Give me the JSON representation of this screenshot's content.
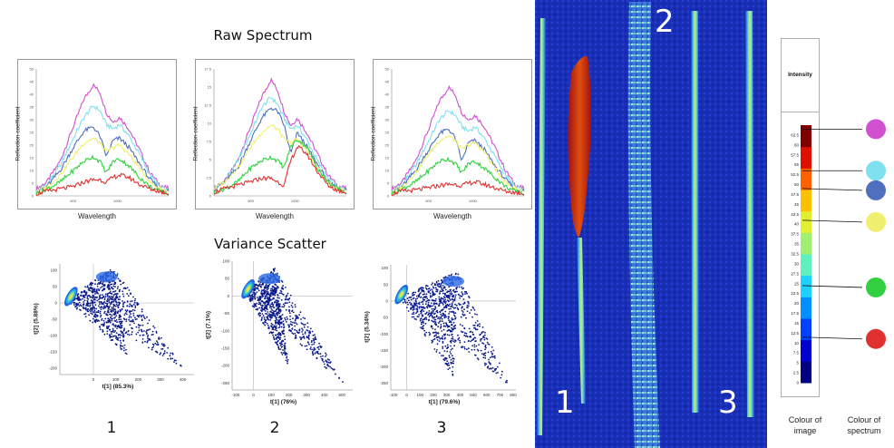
{
  "raw_title": "Raw Spectrum",
  "scatter_title": "Variance Scatter",
  "sample_numbers": [
    "1",
    "2",
    "3"
  ],
  "image_numbers": [
    "1",
    "2",
    "3"
  ],
  "legend": {
    "title": "Intensity",
    "ticks": [
      "0",
      "2.5",
      "5",
      "7.5",
      "10",
      "12.5",
      "15",
      "17.5",
      "20",
      "22.5",
      "25",
      "27.5",
      "30",
      "32.5",
      "35",
      "37.5",
      "40",
      "42.5",
      "45",
      "47.5",
      "50",
      "52.5",
      "55",
      "57.5",
      "60",
      "62.5"
    ],
    "colour_of_image_label": "Colour of image",
    "colour_of_spectrum_label": "Colour of spectrum",
    "markers": [
      {
        "value": 64,
        "color": "#d050d0"
      },
      {
        "value": 53.5,
        "color": "#7fe0f0"
      },
      {
        "value": 49,
        "color": "#4f6fbf"
      },
      {
        "value": 41,
        "color": "#f0f070"
      },
      {
        "value": 24.5,
        "color": "#30d040"
      },
      {
        "value": 11.5,
        "color": "#e03030"
      }
    ]
  },
  "chart_data": [
    {
      "type": "line",
      "title": "",
      "xlabel": "Wavelength",
      "ylabel": "Reflection coefficient",
      "xticks": [
        "500",
        "1000"
      ],
      "yticks": [
        "0",
        "5",
        "10",
        "15",
        "20",
        "25",
        "30",
        "35",
        "40",
        "45",
        "50"
      ],
      "ylim": [
        0,
        55
      ],
      "series": [
        {
          "color": "#d050d0",
          "x": [
            0,
            0.08,
            0.18,
            0.28,
            0.36,
            0.43,
            0.48,
            0.53,
            0.58,
            0.63,
            0.7,
            0.78,
            0.86,
            0.93,
            1
          ],
          "y": [
            3,
            6,
            15,
            30,
            42,
            48,
            45,
            36,
            32,
            34,
            29,
            20,
            10,
            5,
            3
          ]
        },
        {
          "color": "#7fe0f0",
          "x": [
            0,
            0.08,
            0.18,
            0.28,
            0.36,
            0.43,
            0.48,
            0.53,
            0.58,
            0.63,
            0.7,
            0.78,
            0.86,
            0.93,
            1
          ],
          "y": [
            2,
            5,
            13,
            25,
            34,
            39,
            37,
            31,
            29,
            31,
            26,
            18,
            9,
            4,
            2
          ]
        },
        {
          "color": "#4f6fbf",
          "x": [
            0,
            0.08,
            0.18,
            0.28,
            0.36,
            0.43,
            0.48,
            0.53,
            0.58,
            0.63,
            0.7,
            0.78,
            0.86,
            0.93,
            1
          ],
          "y": [
            2,
            4,
            11,
            21,
            28,
            30,
            26,
            17,
            24,
            25,
            21,
            14,
            7,
            3,
            2
          ]
        },
        {
          "color": "#f0f070",
          "x": [
            0,
            0.08,
            0.18,
            0.28,
            0.36,
            0.43,
            0.48,
            0.53,
            0.58,
            0.63,
            0.7,
            0.78,
            0.86,
            0.93,
            1
          ],
          "y": [
            2,
            4,
            9,
            17,
            23,
            25,
            23,
            19,
            21,
            22,
            18,
            12,
            6,
            3,
            2
          ]
        },
        {
          "color": "#30d040",
          "x": [
            0,
            0.08,
            0.18,
            0.28,
            0.36,
            0.43,
            0.48,
            0.53,
            0.58,
            0.63,
            0.7,
            0.78,
            0.86,
            0.93,
            1
          ],
          "y": [
            1,
            3,
            6,
            11,
            15,
            17,
            15,
            10,
            15,
            16,
            13,
            8,
            4,
            2,
            1
          ]
        },
        {
          "color": "#e03030",
          "x": [
            0,
            0.08,
            0.18,
            0.28,
            0.36,
            0.43,
            0.48,
            0.53,
            0.58,
            0.63,
            0.7,
            0.78,
            0.86,
            0.93,
            1
          ],
          "y": [
            1,
            2,
            3,
            4,
            6,
            7,
            7,
            6,
            8,
            9,
            8,
            5,
            3,
            2,
            1
          ]
        }
      ]
    },
    {
      "type": "line",
      "title": "",
      "xlabel": "Wavelength",
      "ylabel": "Reflection coefficient",
      "xticks": [
        "500",
        "1000"
      ],
      "yticks": [
        "0",
        "2.5",
        "5",
        "7.5",
        "10",
        "12.5",
        "15",
        "17.5"
      ],
      "ylim": [
        0,
        18
      ],
      "series": [
        {
          "color": "#d050d0",
          "x": [
            0,
            0.08,
            0.18,
            0.28,
            0.36,
            0.43,
            0.48,
            0.53,
            0.58,
            0.63,
            0.7,
            0.78,
            0.86,
            0.93,
            1
          ],
          "y": [
            1,
            2,
            5,
            10,
            14,
            16.5,
            15,
            12,
            10,
            11,
            9,
            6,
            3,
            1.5,
            1
          ]
        },
        {
          "color": "#7fe0f0",
          "x": [
            0,
            0.08,
            0.18,
            0.28,
            0.36,
            0.43,
            0.48,
            0.53,
            0.58,
            0.63,
            0.7,
            0.78,
            0.86,
            0.93,
            1
          ],
          "y": [
            1,
            2,
            5,
            9,
            12.5,
            14,
            13,
            11,
            9.5,
            10,
            8,
            5,
            2.5,
            1.2,
            0.8
          ]
        },
        {
          "color": "#4f6fbf",
          "x": [
            0,
            0.08,
            0.18,
            0.28,
            0.36,
            0.43,
            0.48,
            0.53,
            0.58,
            0.63,
            0.7,
            0.78,
            0.86,
            0.93,
            1
          ],
          "y": [
            1,
            2,
            4,
            8,
            11,
            12.5,
            12,
            10,
            6,
            9,
            7,
            4.5,
            2,
            1,
            0.8
          ]
        },
        {
          "color": "#f0f070",
          "x": [
            0,
            0.08,
            0.18,
            0.28,
            0.36,
            0.43,
            0.48,
            0.53,
            0.58,
            0.63,
            0.7,
            0.78,
            0.86,
            0.93,
            1
          ],
          "y": [
            1,
            2,
            4,
            7,
            9,
            10,
            9.5,
            8,
            7.5,
            8,
            6.5,
            4,
            2,
            1,
            0.8
          ]
        },
        {
          "color": "#30d040",
          "x": [
            0,
            0.08,
            0.18,
            0.28,
            0.36,
            0.43,
            0.48,
            0.53,
            0.58,
            0.63,
            0.7,
            0.78,
            0.86,
            0.93,
            1
          ],
          "y": [
            0.5,
            1,
            2,
            4,
            5,
            5.5,
            5,
            4,
            7,
            8,
            7,
            4,
            2,
            1,
            0.5
          ]
        },
        {
          "color": "#e03030",
          "x": [
            0,
            0.08,
            0.18,
            0.28,
            0.36,
            0.43,
            0.48,
            0.53,
            0.58,
            0.63,
            0.7,
            0.78,
            0.86,
            0.93,
            1
          ],
          "y": [
            0.5,
            1,
            1.5,
            2,
            2.5,
            2.5,
            2,
            1.5,
            5,
            7,
            6,
            3.5,
            1.5,
            0.8,
            0.5
          ]
        }
      ]
    },
    {
      "type": "line",
      "title": "",
      "xlabel": "Wavelength",
      "ylabel": "Reflection coefficient",
      "xticks": [
        "500",
        "1000"
      ],
      "yticks": [
        "0",
        "5",
        "10",
        "15",
        "20",
        "25",
        "30",
        "35",
        "40",
        "45",
        "50"
      ],
      "ylim": [
        0,
        55
      ],
      "series": [
        {
          "color": "#d050d0",
          "x": [
            0,
            0.08,
            0.18,
            0.28,
            0.36,
            0.43,
            0.48,
            0.53,
            0.58,
            0.63,
            0.7,
            0.78,
            0.86,
            0.93,
            1
          ],
          "y": [
            3,
            6,
            15,
            29,
            41,
            47,
            44,
            36,
            33,
            35,
            30,
            21,
            11,
            5,
            3
          ]
        },
        {
          "color": "#7fe0f0",
          "x": [
            0,
            0.08,
            0.18,
            0.28,
            0.36,
            0.43,
            0.48,
            0.53,
            0.58,
            0.63,
            0.7,
            0.78,
            0.86,
            0.93,
            1
          ],
          "y": [
            2,
            5,
            13,
            24,
            33,
            37,
            35,
            30,
            28,
            30,
            25,
            17,
            9,
            4,
            2
          ]
        },
        {
          "color": "#4f6fbf",
          "x": [
            0,
            0.08,
            0.18,
            0.28,
            0.36,
            0.43,
            0.48,
            0.53,
            0.58,
            0.63,
            0.7,
            0.78,
            0.86,
            0.93,
            1
          ],
          "y": [
            2,
            4,
            11,
            20,
            27,
            29,
            25,
            15,
            23,
            24,
            20,
            13,
            7,
            3,
            2
          ]
        },
        {
          "color": "#f0f070",
          "x": [
            0,
            0.08,
            0.18,
            0.28,
            0.36,
            0.43,
            0.48,
            0.53,
            0.58,
            0.63,
            0.7,
            0.78,
            0.86,
            0.93,
            1
          ],
          "y": [
            2,
            4,
            10,
            18,
            24,
            26,
            24,
            20,
            22,
            23,
            19,
            12,
            6,
            3,
            2
          ]
        },
        {
          "color": "#30d040",
          "x": [
            0,
            0.08,
            0.18,
            0.28,
            0.36,
            0.43,
            0.48,
            0.53,
            0.58,
            0.63,
            0.7,
            0.78,
            0.86,
            0.93,
            1
          ],
          "y": [
            1,
            3,
            6,
            11,
            15,
            16,
            14,
            10,
            14,
            15,
            12,
            8,
            4,
            2,
            1
          ]
        },
        {
          "color": "#e03030",
          "x": [
            0,
            0.08,
            0.18,
            0.28,
            0.36,
            0.43,
            0.48,
            0.53,
            0.58,
            0.63,
            0.7,
            0.78,
            0.86,
            0.93,
            1
          ],
          "y": [
            1,
            2,
            2.5,
            3.5,
            4.5,
            5,
            5,
            4.5,
            5.5,
            6,
            5,
            3.5,
            2,
            1.5,
            1
          ]
        }
      ]
    },
    {
      "type": "scatter",
      "title": "",
      "xlabel": "t[1] (85.3%)",
      "ylabel": "t[2] (5.88%)",
      "xticks": [
        "0",
        "100",
        "200",
        "300",
        "400"
      ],
      "xlim": [
        -150,
        450
      ],
      "yticks": [
        "100",
        "50",
        "0",
        "-50",
        "-100",
        "-150",
        "-200"
      ],
      "ylim": [
        -220,
        120
      ],
      "cloud": {
        "tip": [
          90,
          110
        ],
        "left": [
          -120,
          10
        ],
        "right": [
          400,
          -200
        ],
        "low": [
          150,
          -160
        ]
      }
    },
    {
      "type": "scatter",
      "title": "",
      "xlabel": "t[1] (76%)",
      "ylabel": "t[2] (7.1%)",
      "xticks": [
        "-100",
        "0",
        "100",
        "200",
        "300",
        "400",
        "500"
      ],
      "xlim": [
        -120,
        560
      ],
      "yticks": [
        "100",
        "50",
        "0",
        "-50",
        "-100",
        "-150",
        "-200",
        "-250"
      ],
      "ylim": [
        -270,
        100
      ],
      "cloud": {
        "tip": [
          120,
          80
        ],
        "left": [
          -50,
          10
        ],
        "right": [
          520,
          -260
        ],
        "low": [
          200,
          -200
        ]
      }
    },
    {
      "type": "scatter",
      "title": "",
      "xlabel": "t[1] (79.6%)",
      "ylabel": "t[2] (5.34%)",
      "xticks": [
        "-100",
        "0",
        "100",
        "200",
        "300",
        "400",
        "500",
        "600",
        "700",
        "800"
      ],
      "xlim": [
        -120,
        820
      ],
      "yticks": [
        "100",
        "50",
        "0",
        "-50",
        "-100",
        "-150",
        "-200",
        "-250"
      ],
      "ylim": [
        -270,
        110
      ],
      "cloud": {
        "tip": [
          380,
          90
        ],
        "left": [
          -60,
          10
        ],
        "right": [
          780,
          -260
        ],
        "low": [
          350,
          -230
        ]
      }
    }
  ]
}
